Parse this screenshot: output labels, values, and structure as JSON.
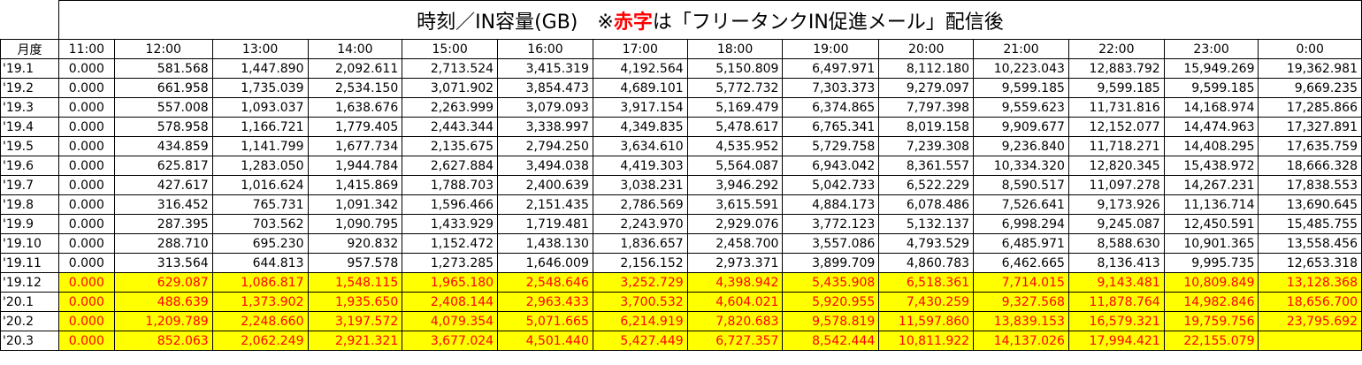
{
  "title": {
    "prefix": "時刻／IN容量(GB)　※",
    "highlight": "赤字",
    "suffix": "は「フリータンクIN促進メール」配信後",
    "highlight_color": "#ff0000"
  },
  "highlight_fill": "#ffff00",
  "columns": [
    "月度",
    "11:00",
    "12:00",
    "13:00",
    "14:00",
    "15:00",
    "16:00",
    "17:00",
    "18:00",
    "19:00",
    "20:00",
    "21:00",
    "22:00",
    "23:00",
    "0:00"
  ],
  "rows": [
    {
      "month": "'19.1",
      "highlight": false,
      "values": [
        "0.000",
        "581.568",
        "1,447.890",
        "2,092.611",
        "2,713.524",
        "3,415.319",
        "4,192.564",
        "5,150.809",
        "6,497.971",
        "8,112.180",
        "10,223.043",
        "12,883.792",
        "15,949.269",
        "19,362.981"
      ]
    },
    {
      "month": "'19.2",
      "highlight": false,
      "values": [
        "0.000",
        "661.958",
        "1,735.039",
        "2,534.150",
        "3,071.902",
        "3,854.473",
        "4,689.101",
        "5,772.732",
        "7,303.373",
        "9,279.097",
        "9,599.185",
        "9,599.185",
        "9,599.185",
        "9,669.235"
      ]
    },
    {
      "month": "'19.3",
      "highlight": false,
      "values": [
        "0.000",
        "557.008",
        "1,093.037",
        "1,638.676",
        "2,263.999",
        "3,079.093",
        "3,917.154",
        "5,169.479",
        "6,374.865",
        "7,797.398",
        "9,559.623",
        "11,731.816",
        "14,168.974",
        "17,285.866"
      ]
    },
    {
      "month": "'19.4",
      "highlight": false,
      "values": [
        "0.000",
        "578.958",
        "1,166.721",
        "1,779.405",
        "2,443.344",
        "3,338.997",
        "4,349.835",
        "5,478.617",
        "6,765.341",
        "8,019.158",
        "9,909.677",
        "12,152.077",
        "14,474.963",
        "17,327.891"
      ]
    },
    {
      "month": "'19.5",
      "highlight": false,
      "values": [
        "0.000",
        "434.859",
        "1,141.799",
        "1,677.734",
        "2,135.675",
        "2,794.250",
        "3,634.610",
        "4,535.952",
        "5,729.758",
        "7,239.308",
        "9,236.840",
        "11,718.271",
        "14,408.295",
        "17,635.759"
      ]
    },
    {
      "month": "'19.6",
      "highlight": false,
      "values": [
        "0.000",
        "625.817",
        "1,283.050",
        "1,944.784",
        "2,627.884",
        "3,494.038",
        "4,419.303",
        "5,564.087",
        "6,943.042",
        "8,361.557",
        "10,334.320",
        "12,820.345",
        "15,438.972",
        "18,666.328"
      ]
    },
    {
      "month": "'19.7",
      "highlight": false,
      "values": [
        "0.000",
        "427.617",
        "1,016.624",
        "1,415.869",
        "1,788.703",
        "2,400.639",
        "3,038.231",
        "3,946.292",
        "5,042.733",
        "6,522.229",
        "8,590.517",
        "11,097.278",
        "14,267.231",
        "17,838.553"
      ]
    },
    {
      "month": "'19.8",
      "highlight": false,
      "values": [
        "0.000",
        "316.452",
        "765.731",
        "1,091.342",
        "1,596.466",
        "2,151.435",
        "2,786.569",
        "3,615.591",
        "4,884.173",
        "6,078.486",
        "7,526.641",
        "9,173.926",
        "11,136.714",
        "13,690.645"
      ]
    },
    {
      "month": "'19.9",
      "highlight": false,
      "values": [
        "0.000",
        "287.395",
        "703.562",
        "1,090.795",
        "1,433.929",
        "1,719.481",
        "2,243.970",
        "2,929.076",
        "3,772.123",
        "5,132.137",
        "6,998.294",
        "9,245.087",
        "12,450.591",
        "15,485.755"
      ]
    },
    {
      "month": "'19.10",
      "highlight": false,
      "values": [
        "0.000",
        "288.710",
        "695.230",
        "920.832",
        "1,152.472",
        "1,438.130",
        "1,836.657",
        "2,458.700",
        "3,557.086",
        "4,793.529",
        "6,485.971",
        "8,588.630",
        "10,901.365",
        "13,558.456"
      ]
    },
    {
      "month": "'19.11",
      "highlight": false,
      "values": [
        "0.000",
        "313.564",
        "644.813",
        "957.578",
        "1,273.285",
        "1,646.009",
        "2,156.152",
        "2,973.371",
        "3,899.709",
        "4,860.783",
        "6,462.665",
        "8,136.413",
        "9,995.735",
        "12,653.318"
      ]
    },
    {
      "month": "'19.12",
      "highlight": true,
      "values": [
        "0.000",
        "629.087",
        "1,086.817",
        "1,548.115",
        "1,965.180",
        "2,548.646",
        "3,252.729",
        "4,398.942",
        "5,435.908",
        "6,518.361",
        "7,714.015",
        "9,143.481",
        "10,809.849",
        "13,128.368"
      ]
    },
    {
      "month": "'20.1",
      "highlight": true,
      "values": [
        "0.000",
        "488.639",
        "1,373.902",
        "1,935.650",
        "2,408.144",
        "2,963.433",
        "3,700.532",
        "4,604.021",
        "5,920.955",
        "7,430.259",
        "9,327.568",
        "11,878.764",
        "14,982.846",
        "18,656.700"
      ]
    },
    {
      "month": "'20.2",
      "highlight": true,
      "values": [
        "0.000",
        "1,209.789",
        "2,248.660",
        "3,197.572",
        "4,079.354",
        "5,071.665",
        "6,214.919",
        "7,820.683",
        "9,578.819",
        "11,597.860",
        "13,839.153",
        "16,579.321",
        "19,759.756",
        "23,795.692"
      ]
    },
    {
      "month": "'20.3",
      "highlight": true,
      "values": [
        "0.000",
        "852.063",
        "2,062.249",
        "2,921.321",
        "3,677.024",
        "4,501.440",
        "5,427.449",
        "6,727.357",
        "8,542.444",
        "10,811.922",
        "14,137.026",
        "17,994.421",
        "22,155.079",
        ""
      ]
    }
  ]
}
